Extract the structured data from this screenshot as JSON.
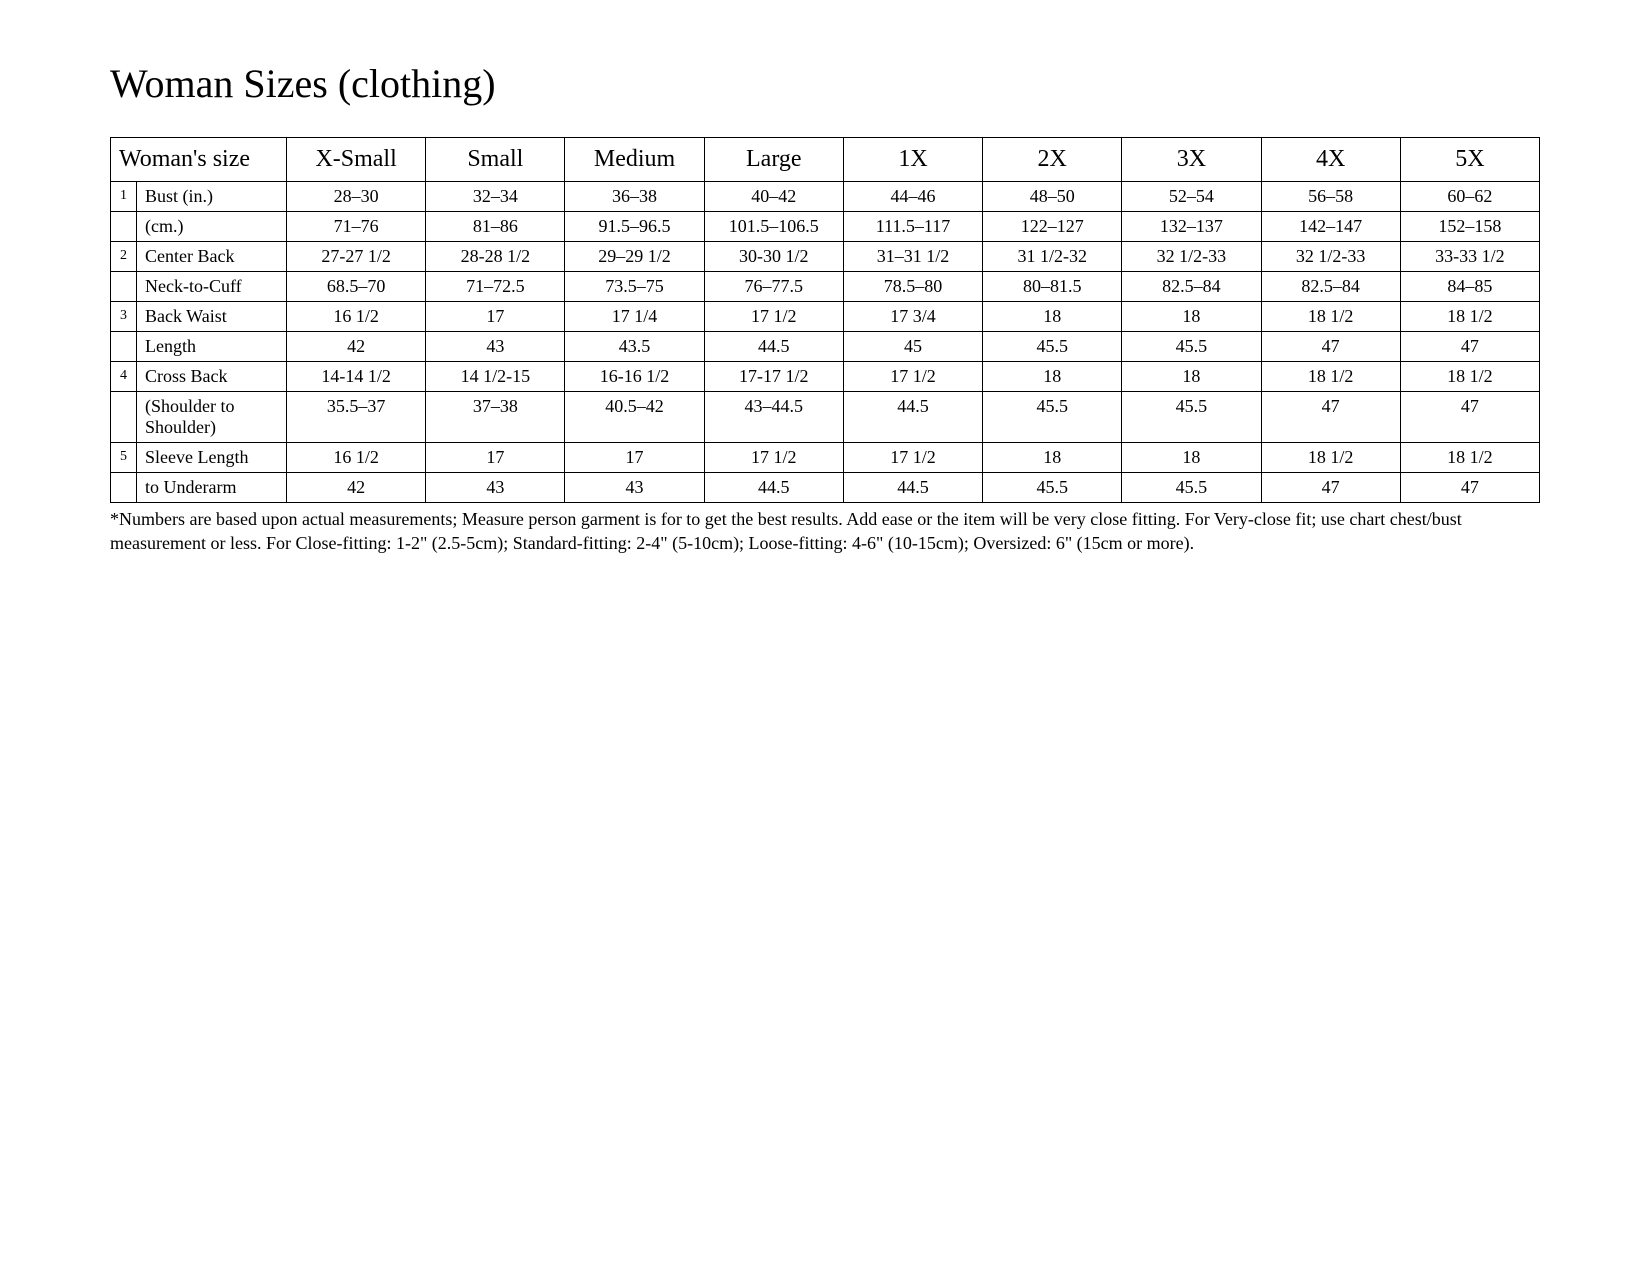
{
  "title": "Woman Sizes (clothing)",
  "columns": [
    "Woman's size",
    "X-Small",
    "Small",
    "Medium",
    "Large",
    "1X",
    "2X",
    "3X",
    "4X",
    "5X"
  ],
  "rows": [
    {
      "num": "1",
      "label": "Bust (in.)",
      "cells": [
        "28–30",
        "32–34",
        "36–38",
        "40–42",
        "44–46",
        "48–50",
        "52–54",
        "56–58",
        "60–62"
      ]
    },
    {
      "num": "",
      "label": "(cm.)",
      "cells": [
        "71–76",
        "81–86",
        "91.5–96.5",
        "101.5–106.5",
        "111.5–117",
        "122–127",
        "132–137",
        "142–147",
        "152–158"
      ]
    },
    {
      "num": "2",
      "label": "Center Back",
      "cells": [
        "27-27 1/2",
        "28-28 1/2",
        "29–29 1/2",
        "30-30 1/2",
        "31–31 1/2",
        "31 1/2-32",
        "32 1/2-33",
        "32 1/2-33",
        "33-33 1/2"
      ]
    },
    {
      "num": "",
      "label": "Neck-to-Cuff",
      "cells": [
        "68.5–70",
        "71–72.5",
        "73.5–75",
        "76–77.5",
        "78.5–80",
        "80–81.5",
        "82.5–84",
        "82.5–84",
        "84–85"
      ]
    },
    {
      "num": "3",
      "label": "Back Waist",
      "cells": [
        "16 1/2",
        "17",
        "17 1/4",
        "17 1/2",
        "17 3/4",
        "18",
        "18",
        "18 1/2",
        "18 1/2"
      ]
    },
    {
      "num": "",
      "label": "Length",
      "cells": [
        "42",
        "43",
        "43.5",
        "44.5",
        "45",
        "45.5",
        "45.5",
        "47",
        "47"
      ]
    },
    {
      "num": "4",
      "label": "Cross Back",
      "cells": [
        "14-14 1/2",
        "14 1/2-15",
        "16-16 1/2",
        "17-17 1/2",
        "17 1/2",
        "18",
        "18",
        "18 1/2",
        "18 1/2"
      ]
    },
    {
      "num": "",
      "label": "(Shoulder to Shoulder)",
      "cells": [
        "35.5–37",
        "37–38",
        "40.5–42",
        "43–44.5",
        "44.5",
        "45.5",
        "45.5",
        "47",
        "47"
      ]
    },
    {
      "num": "5",
      "label": "Sleeve Length",
      "cells": [
        "16 1/2",
        "17",
        "17",
        "17 1/2",
        "17 1/2",
        "18",
        "18",
        "18 1/2",
        "18 1/2"
      ]
    },
    {
      "num": "",
      "label": "to Underarm",
      "cells": [
        "42",
        "43",
        "43",
        "44.5",
        "44.5",
        "45.5",
        "45.5",
        "47",
        "47"
      ]
    }
  ],
  "footnote": "*Numbers are based upon actual measurements; Measure person garment is for to get the best results.  Add ease or the item will be very close fitting. For Very-close fit; use chart chest/bust measurement or less.  For Close-fitting: 1-2\" (2.5-5cm); Standard-fitting: 2-4\" (5-10cm); Loose-fitting: 4-6\" (10-15cm); Oversized: 6\" (15cm or more)."
}
